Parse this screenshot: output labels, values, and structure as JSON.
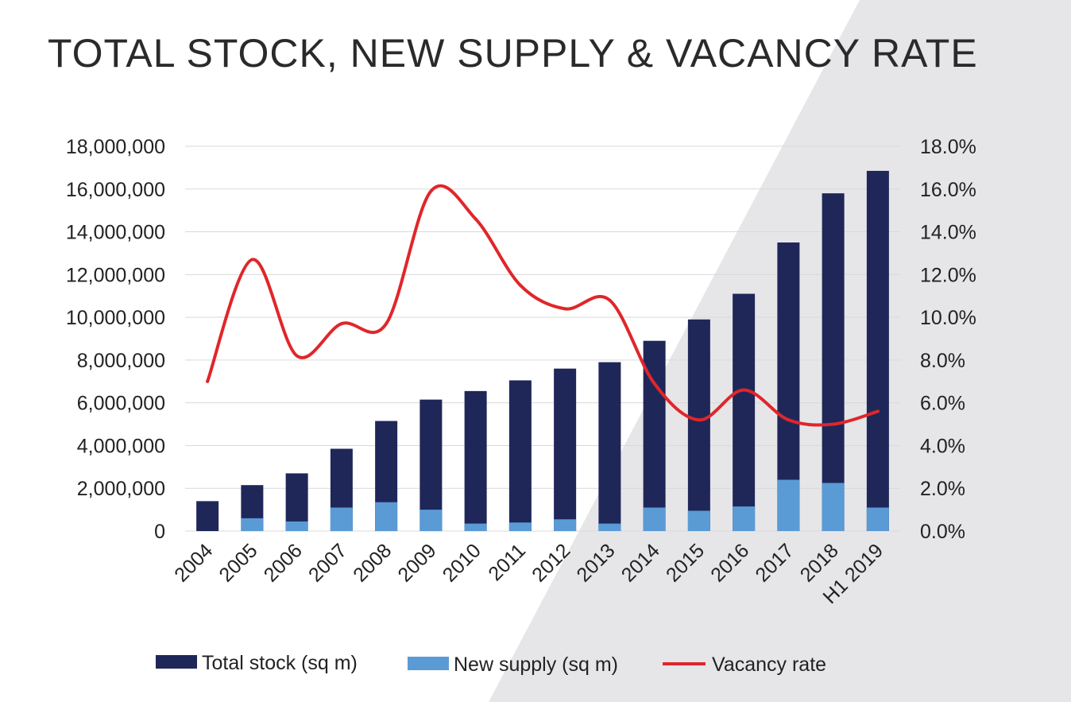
{
  "colors": {
    "background": "#ffffff",
    "background_shape": "#e6e6e9",
    "total_stock": "#1f2759",
    "new_supply": "#5b9bd5",
    "vacancy_rate": "#e0262a",
    "gridline": "#d9d9d9",
    "text": "#222222"
  },
  "chart_data": {
    "type": "bar",
    "title": "TOTAL STOCK, NEW SUPPLY & VACANCY RATE",
    "categories": [
      "2004",
      "2005",
      "2006",
      "2007",
      "2008",
      "2009",
      "2010",
      "2011",
      "2012",
      "2013",
      "2014",
      "2015",
      "2016",
      "2017",
      "2018",
      "H1 2019"
    ],
    "series": [
      {
        "name": "Total stock (sq m)",
        "type": "bar",
        "axis": "left",
        "values": [
          1400000,
          2150000,
          2700000,
          3850000,
          5150000,
          6150000,
          6550000,
          7050000,
          7600000,
          7900000,
          8900000,
          9900000,
          11100000,
          13500000,
          15800000,
          16850000
        ]
      },
      {
        "name": "New supply (sq m)",
        "type": "bar",
        "axis": "left",
        "values": [
          0,
          600000,
          450000,
          1100000,
          1350000,
          1000000,
          350000,
          400000,
          550000,
          350000,
          1100000,
          950000,
          1150000,
          2400000,
          2250000,
          1100000
        ]
      },
      {
        "name": "Vacancy rate",
        "type": "line",
        "axis": "right",
        "values": [
          7.0,
          12.7,
          8.2,
          9.7,
          9.7,
          15.9,
          14.6,
          11.5,
          10.4,
          10.8,
          6.9,
          5.2,
          6.6,
          5.2,
          5.0,
          5.6
        ]
      }
    ],
    "y_left": {
      "min": 0,
      "max": 18000000,
      "tick_labels": [
        "0",
        "2,000,000",
        "4,000,000",
        "6,000,000",
        "8,000,000",
        "10,000,000",
        "12,000,000",
        "14,000,000",
        "16,000,000",
        "18,000,000"
      ]
    },
    "y_right": {
      "min": 0,
      "max": 18,
      "tick_labels": [
        "0.0%",
        "2.0%",
        "4.0%",
        "6.0%",
        "8.0%",
        "10.0%",
        "12.0%",
        "14.0%",
        "16.0%",
        "18.0%"
      ]
    },
    "xlabel": "",
    "ylabel": "",
    "grid": true,
    "legend": {
      "placement": "bottom",
      "items": [
        {
          "label": "Total stock (sq m)",
          "symbol": "bar"
        },
        {
          "label": "New supply (sq m)",
          "symbol": "bar"
        },
        {
          "label": "Vacancy rate",
          "symbol": "line"
        }
      ]
    }
  }
}
